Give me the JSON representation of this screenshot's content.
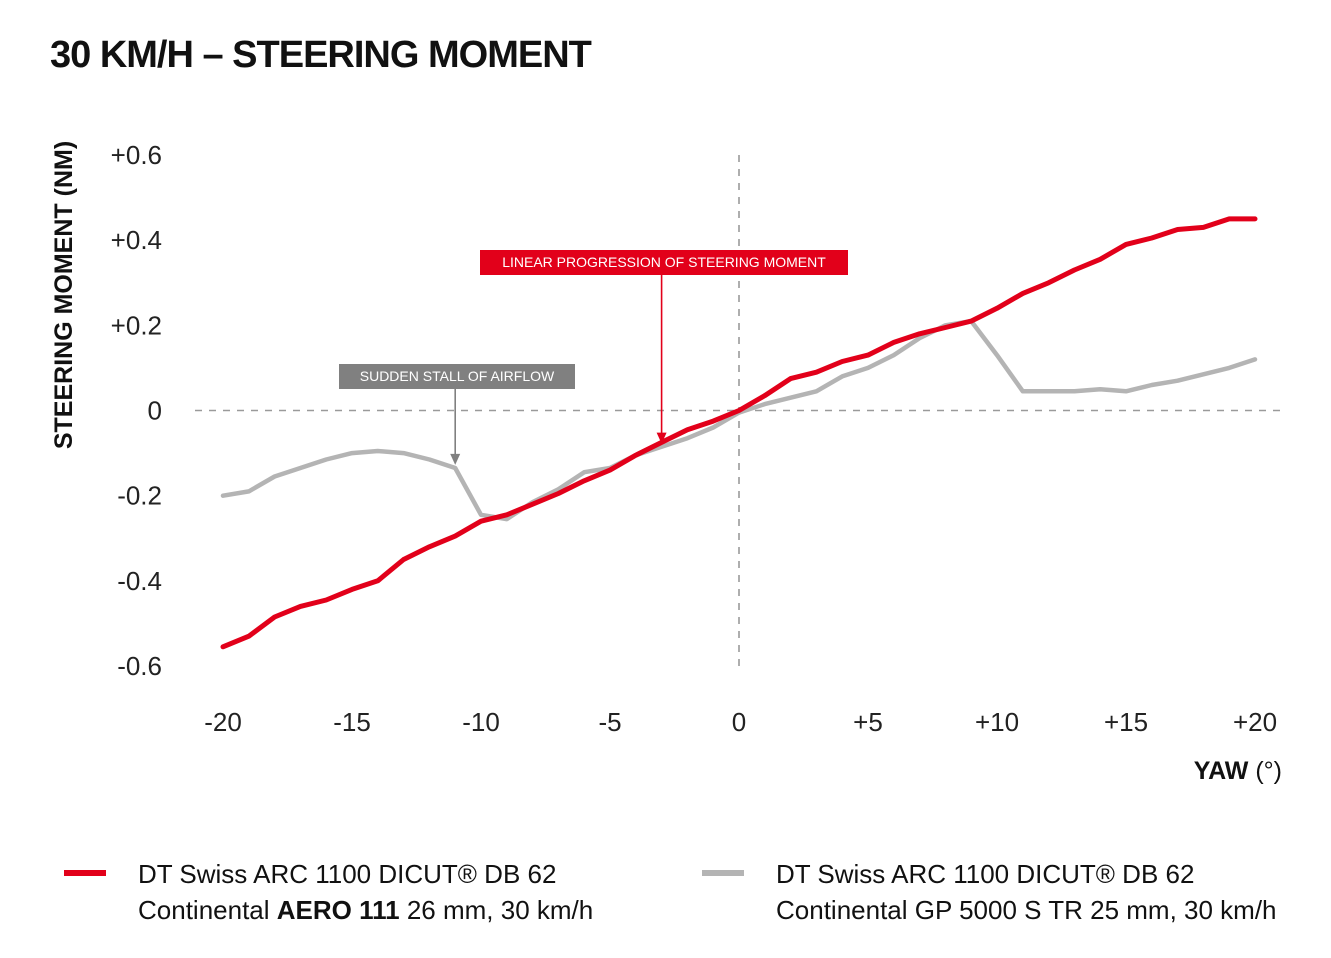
{
  "chart_data": {
    "type": "line",
    "title": "30 KM/H – STEERING MOMENT",
    "ylabel": "STEERING MOMENT (NM)",
    "xlabel": "YAW",
    "xlabel_unit": "(°)",
    "xlim": [
      -20,
      20
    ],
    "ylim": [
      -0.6,
      0.6
    ],
    "x_ticks": [
      -20,
      -15,
      -10,
      -5,
      0,
      5,
      10,
      15,
      20
    ],
    "x_tick_labels": [
      "-20",
      "-15",
      "-10",
      "-5",
      "0",
      "+5",
      "+10",
      "+15",
      "+20"
    ],
    "y_ticks": [
      0.6,
      0.4,
      0.2,
      0,
      -0.2,
      -0.4,
      -0.6
    ],
    "y_tick_labels": [
      "+0.6",
      "+0.4",
      "+0.2",
      "0",
      "-0.2",
      "-0.4",
      "-0.6"
    ],
    "grid": false,
    "reference_lines": {
      "x": 0,
      "y": 0,
      "style": "dashed"
    },
    "legend_position": "bottom",
    "series": [
      {
        "color": "#e2001a",
        "legend_line1": "DT Swiss ARC 1100 DICUT® DB 62",
        "legend_line2_a": "Continental ",
        "legend_line2_bold": "AERO 111",
        "legend_line2_b": " 26 mm, 30 km/h",
        "x": [
          -20,
          -19,
          -18,
          -17,
          -16,
          -15,
          -14,
          -13,
          -12,
          -11,
          -10,
          -9,
          -8,
          -7,
          -6,
          -5,
          -4,
          -3,
          -2,
          -1,
          0,
          1,
          2,
          3,
          4,
          5,
          6,
          7,
          8,
          9,
          10,
          11,
          12,
          13,
          14,
          15,
          16,
          17,
          18,
          19,
          20
        ],
        "y": [
          -0.555,
          -0.53,
          -0.485,
          -0.46,
          -0.445,
          -0.42,
          -0.4,
          -0.35,
          -0.32,
          -0.295,
          -0.26,
          -0.245,
          -0.22,
          -0.195,
          -0.165,
          -0.14,
          -0.105,
          -0.075,
          -0.045,
          -0.025,
          0.0,
          0.035,
          0.075,
          0.09,
          0.115,
          0.13,
          0.16,
          0.18,
          0.195,
          0.21,
          0.24,
          0.275,
          0.3,
          0.33,
          0.355,
          0.39,
          0.405,
          0.425,
          0.43,
          0.45,
          0.45
        ]
      },
      {
        "color": "#b4b4b4",
        "legend_line1": "DT Swiss ARC 1100 DICUT® DB 62",
        "legend_line2": "Continental GP 5000 S TR 25 mm, 30 km/h",
        "x": [
          -20,
          -19,
          -18,
          -17,
          -16,
          -15,
          -14,
          -13,
          -12,
          -11,
          -10,
          -9,
          -8,
          -7,
          -6,
          -5,
          -4,
          -3,
          -2,
          -1,
          0,
          1,
          2,
          3,
          4,
          5,
          6,
          7,
          8,
          9,
          10,
          11,
          12,
          13,
          14,
          15,
          16,
          17,
          18,
          19,
          20
        ],
        "y": [
          -0.2,
          -0.19,
          -0.155,
          -0.135,
          -0.115,
          -0.1,
          -0.095,
          -0.1,
          -0.115,
          -0.135,
          -0.245,
          -0.255,
          -0.215,
          -0.185,
          -0.145,
          -0.135,
          -0.105,
          -0.085,
          -0.065,
          -0.04,
          -0.005,
          0.015,
          0.03,
          0.045,
          0.08,
          0.1,
          0.13,
          0.17,
          0.2,
          0.21,
          0.13,
          0.045,
          0.045,
          0.045,
          0.05,
          0.045,
          0.06,
          0.07,
          0.085,
          0.1,
          0.12
        ]
      }
    ],
    "annotations": [
      {
        "text": "SUDDEN STALL OF AIRFLOW",
        "x": -11,
        "y": -0.13,
        "color": "#808080"
      },
      {
        "text": "LINEAR PROGRESSION OF STEERING MOMENT",
        "x": -3,
        "y": -0.08,
        "color": "#e2001a"
      }
    ]
  }
}
